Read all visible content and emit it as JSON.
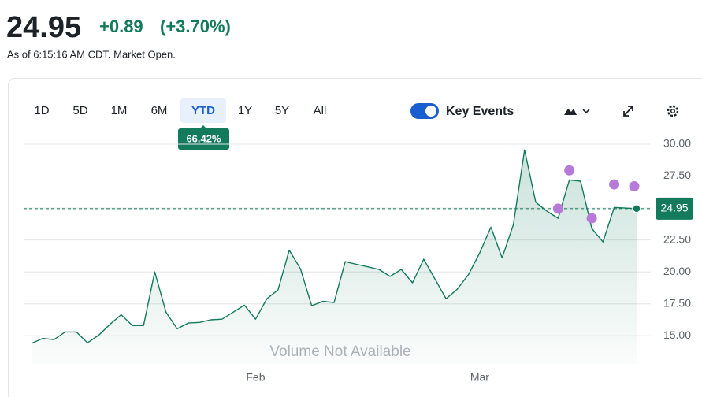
{
  "header": {
    "price": "24.95",
    "change": "+0.89",
    "change_pct": "(+3.70%)",
    "as_of": "As of 6:15:16 AM CDT. Market Open."
  },
  "toolbar": {
    "ranges": [
      "1D",
      "5D",
      "1M",
      "6M",
      "YTD",
      "1Y",
      "5Y",
      "All"
    ],
    "selected": 4,
    "range_change": "66.42%",
    "key_events": "Key Events"
  },
  "chart_data": {
    "type": "line",
    "annotation": "Volume Not Available",
    "categories": [
      null,
      null,
      null,
      null,
      null,
      null,
      null,
      null,
      null,
      null,
      null,
      null,
      null,
      null,
      null,
      null,
      null,
      null,
      null,
      null,
      "Feb",
      null,
      null,
      null,
      null,
      null,
      null,
      null,
      null,
      null,
      null,
      null,
      null,
      null,
      null,
      null,
      null,
      null,
      null,
      null,
      "Mar",
      null,
      null,
      null,
      null,
      null,
      null,
      null,
      null,
      null,
      null,
      null,
      null,
      null,
      null
    ],
    "series": [
      {
        "color": "#137a5b",
        "values": [
          14.4,
          14.8,
          14.7,
          15.3,
          15.3,
          14.45,
          15.05,
          15.9,
          16.65,
          15.8,
          15.8,
          20.0,
          16.85,
          15.55,
          16.0,
          16.05,
          16.25,
          16.3,
          16.85,
          17.4,
          16.3,
          17.9,
          18.6,
          21.7,
          20.25,
          17.35,
          17.7,
          17.6,
          20.8,
          20.6,
          20.4,
          20.2,
          19.65,
          20.2,
          19.15,
          21.0,
          19.45,
          17.9,
          18.65,
          19.8,
          21.5,
          23.5,
          21.1,
          23.7,
          29.55,
          25.45,
          24.75,
          24.2,
          27.2,
          27.1,
          23.4,
          22.35,
          25.05,
          25.0,
          24.95
        ]
      }
    ],
    "events": {
      "color": "#b77ad8",
      "values": [
        null,
        null,
        null,
        null,
        null,
        null,
        null,
        null,
        null,
        null,
        null,
        null,
        null,
        null,
        null,
        null,
        null,
        null,
        null,
        null,
        null,
        null,
        null,
        null,
        null,
        null,
        null,
        null,
        null,
        null,
        null,
        null,
        null,
        null,
        null,
        null,
        null,
        null,
        null,
        null,
        null,
        null,
        null,
        null,
        null,
        null,
        null,
        24.95,
        27.95,
        null,
        24.2,
        null,
        26.85,
        null,
        26.7
      ]
    },
    "reference_line": 24.95,
    "ylim": [
      12.8,
      30.8
    ],
    "yticks": [
      {
        "value": 15,
        "label": "15.00"
      },
      {
        "value": 17.5,
        "label": "17.50"
      },
      {
        "value": 20,
        "label": "20.00"
      },
      {
        "value": 22.5,
        "label": "22.50"
      },
      {
        "value": 25,
        "label": "25.00"
      },
      {
        "value": 27.5,
        "label": "27.50"
      },
      {
        "value": 30,
        "label": "30.00"
      }
    ],
    "grid": true
  }
}
